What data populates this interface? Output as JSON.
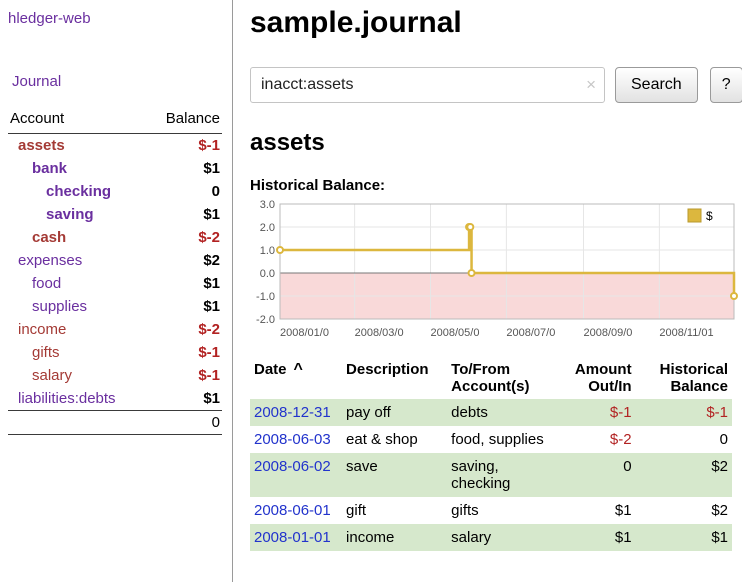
{
  "colors": {
    "purple_link": "#6a2f9f",
    "negative_red": "#a43a35",
    "negative_balance_red": "#b22222",
    "date_link_blue": "#2233cc",
    "shaded_row_green": "#d6e8cc",
    "chart_line_gold": "#dcb73e",
    "chart_negative_region_pink": "#f9d9d9"
  },
  "sidebar": {
    "app_title": "hledger-web",
    "journal_link": "Journal",
    "headers": {
      "account": "Account",
      "balance": "Balance"
    },
    "accounts": [
      {
        "name": "assets",
        "balance": "$-1",
        "level": 0,
        "bold": true
      },
      {
        "name": "bank",
        "balance": "$1",
        "level": 1,
        "bold": true
      },
      {
        "name": "checking",
        "balance": "0",
        "level": 2,
        "bold": true
      },
      {
        "name": "saving",
        "balance": "$1",
        "level": 2,
        "bold": true
      },
      {
        "name": "cash",
        "balance": "$-2",
        "level": 1,
        "bold": true
      },
      {
        "name": "expenses",
        "balance": "$2",
        "level": 0,
        "bold": false
      },
      {
        "name": "food",
        "balance": "$1",
        "level": 1,
        "bold": false
      },
      {
        "name": "supplies",
        "balance": "$1",
        "level": 1,
        "bold": false
      },
      {
        "name": "income",
        "balance": "$-2",
        "level": 0,
        "bold": false
      },
      {
        "name": "gifts",
        "balance": "$-1",
        "level": 1,
        "bold": false
      },
      {
        "name": "salary",
        "balance": "$-1",
        "level": 1,
        "bold": false
      },
      {
        "name": "liabilities:debts",
        "balance": "$1",
        "level": 0,
        "bold": false
      }
    ],
    "total": "0"
  },
  "main": {
    "title": "sample.journal",
    "search": {
      "value": "inacct:assets",
      "clear_icon": "×",
      "button_label": "Search",
      "help_label": "?"
    },
    "account_title": "assets",
    "chart_label": "Historical Balance:"
  },
  "chart_data": {
    "type": "line",
    "title": "Historical Balance",
    "step": true,
    "x_type": "date",
    "x_range": [
      "2008-01-01",
      "2008-12-31"
    ],
    "ylim": [
      -2,
      3
    ],
    "yticks": [
      "3.0",
      "2.0",
      "1.0",
      "0.0",
      "-1.0",
      "-2.0"
    ],
    "xticks": [
      {
        "date": "2008-01-01",
        "label": "2008/01/0"
      },
      {
        "date": "2008-03-01",
        "label": "2008/03/0"
      },
      {
        "date": "2008-05-01",
        "label": "2008/05/0"
      },
      {
        "date": "2008-07-01",
        "label": "2008/07/0"
      },
      {
        "date": "2008-09-01",
        "label": "2008/09/0"
      },
      {
        "date": "2008-11-01",
        "label": "2008/11/01"
      }
    ],
    "negative_region_color": "#f9d9d9",
    "legend": {
      "position": "top-right"
    },
    "series": [
      {
        "name": "$",
        "color": "#dcb73e",
        "points": [
          {
            "date": "2008-01-01",
            "value": 1
          },
          {
            "date": "2008-06-01",
            "value": 2
          },
          {
            "date": "2008-06-02",
            "value": 2
          },
          {
            "date": "2008-06-03",
            "value": 0
          },
          {
            "date": "2008-12-31",
            "value": -1
          }
        ]
      }
    ]
  },
  "register": {
    "headers": [
      {
        "label": "Date",
        "sort_icon": "^"
      },
      {
        "label": "Description"
      },
      {
        "label": "To/From Account(s)"
      },
      {
        "label": "Amount Out/In"
      },
      {
        "label": "Historical Balance"
      }
    ],
    "rows": [
      {
        "date": "2008-12-31",
        "description": "pay off",
        "accounts": "debts",
        "amount": "$-1",
        "balance": "$-1"
      },
      {
        "date": "2008-06-03",
        "description": "eat & shop",
        "accounts": "food, supplies",
        "amount": "$-2",
        "balance": "0"
      },
      {
        "date": "2008-06-02",
        "description": "save",
        "accounts": "saving, checking",
        "amount": "0",
        "balance": "$2"
      },
      {
        "date": "2008-06-01",
        "description": "gift",
        "accounts": "gifts",
        "amount": "$1",
        "balance": "$2"
      },
      {
        "date": "2008-01-01",
        "description": "income",
        "accounts": "salary",
        "amount": "$1",
        "balance": "$1"
      }
    ]
  }
}
